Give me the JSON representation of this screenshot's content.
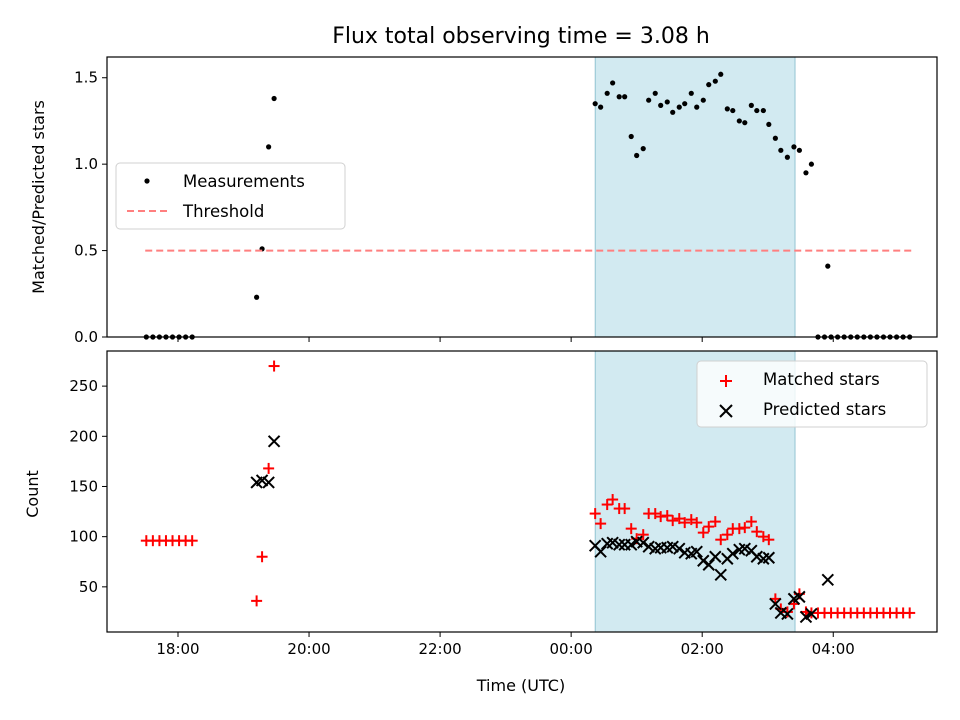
{
  "chart_data": [
    {
      "type": "scatter",
      "title": "Flux total observing time = 3.08 h",
      "ylabel": "Matched/Predicted stars",
      "xlabel": "",
      "ylim": [
        0,
        1.62
      ],
      "yticks": [
        "0.0",
        "0.5",
        "1.0",
        "1.5"
      ],
      "legend": {
        "position": "center-left"
      },
      "shaded_interval": {
        "start": "00:22",
        "end": "03:25",
        "color": "#add8e6"
      },
      "series": [
        {
          "name": "Measurements",
          "kind": "points",
          "color": "#000000",
          "points": [
            [
              "17:31",
              0
            ],
            [
              "17:37",
              0
            ],
            [
              "17:43",
              0
            ],
            [
              "17:49",
              0
            ],
            [
              "17:55",
              0
            ],
            [
              "18:01",
              0
            ],
            [
              "18:07",
              0
            ],
            [
              "18:13",
              0
            ],
            [
              "19:12",
              0.23
            ],
            [
              "19:17",
              0.51
            ],
            [
              "19:23",
              1.1
            ],
            [
              "19:28",
              1.38
            ],
            [
              "00:22",
              1.35
            ],
            [
              "00:27",
              1.33
            ],
            [
              "00:33",
              1.41
            ],
            [
              "00:38",
              1.47
            ],
            [
              "00:44",
              1.39
            ],
            [
              "00:49",
              1.39
            ],
            [
              "00:55",
              1.16
            ],
            [
              "01:00",
              1.05
            ],
            [
              "01:06",
              1.09
            ],
            [
              "01:11",
              1.37
            ],
            [
              "01:17",
              1.41
            ],
            [
              "01:22",
              1.34
            ],
            [
              "01:28",
              1.36
            ],
            [
              "01:33",
              1.3
            ],
            [
              "01:39",
              1.33
            ],
            [
              "01:44",
              1.35
            ],
            [
              "01:50",
              1.41
            ],
            [
              "01:55",
              1.33
            ],
            [
              "02:01",
              1.37
            ],
            [
              "02:06",
              1.46
            ],
            [
              "02:12",
              1.48
            ],
            [
              "02:17",
              1.52
            ],
            [
              "02:23",
              1.32
            ],
            [
              "02:28",
              1.31
            ],
            [
              "02:34",
              1.25
            ],
            [
              "02:39",
              1.24
            ],
            [
              "02:45",
              1.34
            ],
            [
              "02:50",
              1.31
            ],
            [
              "02:56",
              1.31
            ],
            [
              "03:01",
              1.23
            ],
            [
              "03:07",
              1.15
            ],
            [
              "03:12",
              1.08
            ],
            [
              "03:18",
              1.04
            ],
            [
              "03:24",
              1.1
            ],
            [
              "03:29",
              1.08
            ],
            [
              "03:35",
              0.95
            ],
            [
              "03:40",
              1.0
            ],
            [
              "03:55",
              0.41
            ],
            [
              "03:46",
              0
            ],
            [
              "03:52",
              0
            ],
            [
              "03:58",
              0
            ],
            [
              "04:04",
              0
            ],
            [
              "04:10",
              0
            ],
            [
              "04:16",
              0
            ],
            [
              "04:22",
              0
            ],
            [
              "04:28",
              0
            ],
            [
              "04:34",
              0
            ],
            [
              "04:40",
              0
            ],
            [
              "04:46",
              0
            ],
            [
              "04:52",
              0
            ],
            [
              "04:58",
              0
            ],
            [
              "05:04",
              0
            ],
            [
              "05:10",
              0
            ]
          ]
        },
        {
          "name": "Threshold",
          "kind": "dashed-line",
          "color": "#ff7f7f",
          "from": "17:30",
          "to": "05:12",
          "y": 0.5
        }
      ]
    },
    {
      "type": "scatter",
      "title": "",
      "ylabel": "Count",
      "xlabel": "Time (UTC)",
      "ylim": [
        5,
        285
      ],
      "yticks": [
        "50",
        "100",
        "150",
        "200",
        "250"
      ],
      "xlim": [
        "16:55",
        "05:35"
      ],
      "xticks": [
        "18:00",
        "20:00",
        "22:00",
        "00:00",
        "02:00",
        "04:00"
      ],
      "legend": {
        "position": "top-right"
      },
      "shaded_interval": {
        "start": "00:22",
        "end": "03:25",
        "color": "#add8e6"
      },
      "series": [
        {
          "name": "Matched stars",
          "marker": "plus",
          "color": "#ff0000",
          "points": [
            [
              "17:31",
              96
            ],
            [
              "17:37",
              96
            ],
            [
              "17:43",
              96
            ],
            [
              "17:49",
              96
            ],
            [
              "17:55",
              96
            ],
            [
              "18:01",
              96
            ],
            [
              "18:07",
              96
            ],
            [
              "18:13",
              96
            ],
            [
              "19:12",
              36
            ],
            [
              "19:17",
              80
            ],
            [
              "19:23",
              168
            ],
            [
              "19:28",
              270
            ],
            [
              "00:22",
              123
            ],
            [
              "00:27",
              113
            ],
            [
              "00:33",
              132
            ],
            [
              "00:38",
              137
            ],
            [
              "00:44",
              128
            ],
            [
              "00:49",
              128
            ],
            [
              "00:55",
              108
            ],
            [
              "01:00",
              98
            ],
            [
              "01:06",
              102
            ],
            [
              "01:11",
              123
            ],
            [
              "01:17",
              123
            ],
            [
              "01:22",
              120
            ],
            [
              "01:28",
              121
            ],
            [
              "01:33",
              116
            ],
            [
              "01:39",
              118
            ],
            [
              "01:44",
              114
            ],
            [
              "01:50",
              117
            ],
            [
              "01:55",
              114
            ],
            [
              "02:01",
              104
            ],
            [
              "02:06",
              110
            ],
            [
              "02:12",
              115
            ],
            [
              "02:17",
              97
            ],
            [
              "02:23",
              102
            ],
            [
              "02:28",
              108
            ],
            [
              "02:34",
              108
            ],
            [
              "02:39",
              109
            ],
            [
              "02:45",
              115
            ],
            [
              "02:50",
              105
            ],
            [
              "02:56",
              100
            ],
            [
              "03:01",
              97
            ],
            [
              "03:07",
              38
            ],
            [
              "03:12",
              28
            ],
            [
              "03:18",
              25
            ],
            [
              "03:24",
              33
            ],
            [
              "03:29",
              43
            ],
            [
              "03:35",
              25
            ],
            [
              "03:40",
              24
            ],
            [
              "03:46",
              24
            ],
            [
              "03:52",
              24
            ],
            [
              "03:58",
              24
            ],
            [
              "04:04",
              24
            ],
            [
              "04:10",
              24
            ],
            [
              "04:16",
              24
            ],
            [
              "04:22",
              24
            ],
            [
              "04:28",
              24
            ],
            [
              "04:34",
              24
            ],
            [
              "04:40",
              24
            ],
            [
              "04:46",
              24
            ],
            [
              "04:52",
              24
            ],
            [
              "04:58",
              24
            ],
            [
              "05:04",
              24
            ],
            [
              "05:10",
              24
            ]
          ]
        },
        {
          "name": "Predicted stars",
          "marker": "x",
          "color": "#000000",
          "points": [
            [
              "19:12",
              154
            ],
            [
              "19:17",
              156
            ],
            [
              "19:23",
              154
            ],
            [
              "19:28",
              195
            ],
            [
              "00:22",
              91
            ],
            [
              "00:27",
              85
            ],
            [
              "00:33",
              93
            ],
            [
              "00:38",
              94
            ],
            [
              "00:44",
              92
            ],
            [
              "00:49",
              92
            ],
            [
              "00:55",
              92
            ],
            [
              "01:00",
              95
            ],
            [
              "01:06",
              94
            ],
            [
              "01:11",
              90
            ],
            [
              "01:17",
              88
            ],
            [
              "01:22",
              89
            ],
            [
              "01:28",
              89
            ],
            [
              "01:33",
              90
            ],
            [
              "01:39",
              88
            ],
            [
              "01:44",
              84
            ],
            [
              "01:50",
              83
            ],
            [
              "01:55",
              85
            ],
            [
              "02:01",
              76
            ],
            [
              "02:06",
              72
            ],
            [
              "02:12",
              80
            ],
            [
              "02:17",
              62
            ],
            [
              "02:23",
              78
            ],
            [
              "02:28",
              83
            ],
            [
              "02:34",
              87
            ],
            [
              "02:39",
              88
            ],
            [
              "02:45",
              86
            ],
            [
              "02:50",
              80
            ],
            [
              "02:56",
              78
            ],
            [
              "03:01",
              79
            ],
            [
              "03:07",
              33
            ],
            [
              "03:12",
              24
            ],
            [
              "03:18",
              23
            ],
            [
              "03:24",
              38
            ],
            [
              "03:29",
              40
            ],
            [
              "03:35",
              20
            ],
            [
              "03:40",
              23
            ],
            [
              "03:55",
              57
            ]
          ]
        }
      ]
    }
  ]
}
